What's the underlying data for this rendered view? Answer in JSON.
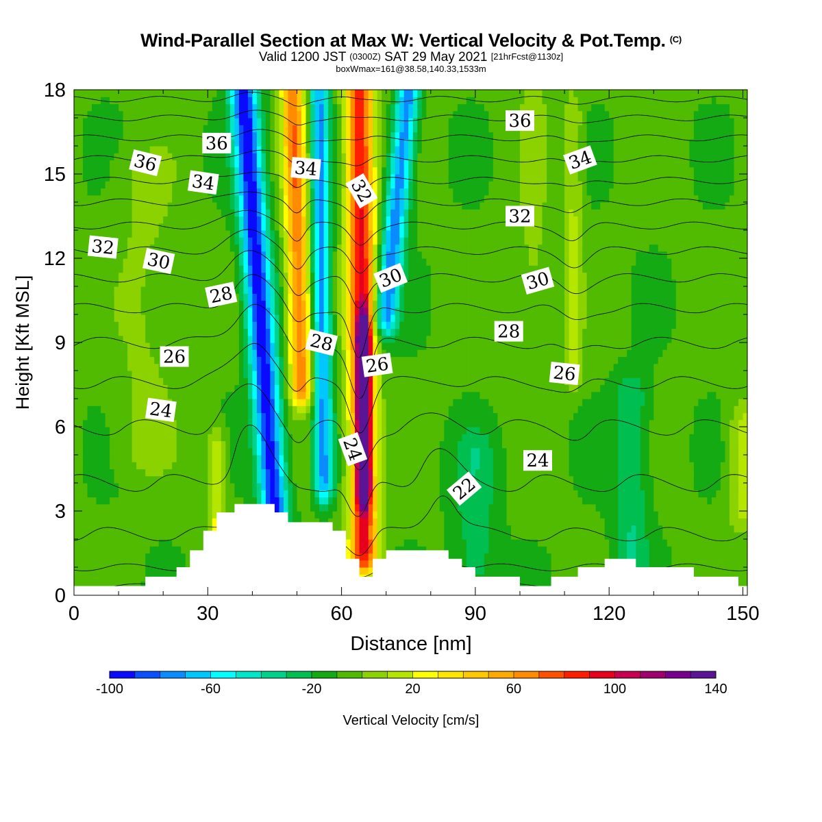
{
  "header": {
    "title": "Wind-Parallel Section at Max W: Vertical Velocity & Pot.Temp.",
    "copyright": "(C)",
    "subtitle_a": "Valid 1200 JST",
    "subtitle_b": "(0300Z)",
    "subtitle_c": "SAT 29 May 2021",
    "subtitle_d": "[21hrFcst@1130z]",
    "boxline": "boxWmax=161@38.58,140.33,1533m"
  },
  "colors": {
    "terrain": "#ffffff",
    "contour": "#000000",
    "palette": [
      "#0a0aff",
      "#0a50ff",
      "#0a8cff",
      "#00c8ff",
      "#00ffff",
      "#00e6c8",
      "#00d28c",
      "#00be50",
      "#14aa14",
      "#50bb00",
      "#8cd200",
      "#b4e600",
      "#ffff00",
      "#ffe600",
      "#ffc800",
      "#ffaa00",
      "#ff8c00",
      "#ff5000",
      "#ff1e00",
      "#e6001e",
      "#c80050",
      "#a0006e",
      "#78008c",
      "#5a1496"
    ]
  },
  "chart_data": {
    "type": "heatmap",
    "xlabel": "Distance [nm]",
    "ylabel": "Height [Kft MSL]",
    "xlim": [
      0,
      151
    ],
    "ylim": [
      0,
      18
    ],
    "xticks": [
      0,
      30,
      60,
      90,
      120,
      150
    ],
    "yticks": [
      0,
      3,
      6,
      9,
      12,
      15,
      18
    ],
    "colorbar": {
      "label": "Vertical Velocity [cm/s]",
      "min": -100,
      "max": 150,
      "step": 10,
      "ticks": [
        -100,
        -60,
        -20,
        20,
        60,
        100,
        140
      ]
    },
    "ambient_w": -8,
    "w_features": [
      {
        "x0": 38,
        "x1": 45,
        "ytop": 18,
        "ybot": 3,
        "w": -90,
        "width": 3
      },
      {
        "x0": 49,
        "x1": 51,
        "ytop": 18,
        "ybot": 7.5,
        "w": 75,
        "width": 2.5
      },
      {
        "x0": 55,
        "x1": 56,
        "ytop": 18,
        "ybot": 4,
        "w": -65,
        "width": 2
      },
      {
        "x0": 64,
        "x1": 65,
        "ytop": 18,
        "ybot": 1.5,
        "w": 100,
        "width": 3
      },
      {
        "x0": 65,
        "x1": 65,
        "ytop": 9,
        "ybot": 4,
        "w": 140,
        "width": 1.3
      },
      {
        "x0": 75,
        "x1": 70,
        "ytop": 18,
        "ybot": 10,
        "w": -70,
        "width": 2.5
      },
      {
        "x0": 112,
        "x1": 112,
        "ytop": 17,
        "ybot": 8,
        "w": 20,
        "width": 2
      },
      {
        "x0": 16,
        "x1": 16,
        "ytop": 15,
        "ybot": 5,
        "w": 10,
        "width": 7
      },
      {
        "x0": 32,
        "x1": 32,
        "ytop": 5,
        "ybot": 2,
        "w": 30,
        "width": 2
      },
      {
        "x0": 150,
        "x1": 150,
        "ytop": 6,
        "ybot": 3,
        "w": 22,
        "width": 3
      },
      {
        "x0": 125,
        "x1": 125,
        "ytop": 7,
        "ybot": 1,
        "w": -22,
        "width": 4
      },
      {
        "x0": 90,
        "x1": 90,
        "ytop": 5,
        "ybot": 1,
        "w": -18,
        "width": 5
      },
      {
        "x0": 103,
        "x1": 103,
        "ytop": 18,
        "ybot": 10,
        "w": 12,
        "width": 3
      }
    ],
    "terrain": [
      [
        0,
        0.33
      ],
      [
        16,
        0.33
      ],
      [
        16,
        0.66
      ],
      [
        23,
        0.66
      ],
      [
        23,
        1.0
      ],
      [
        26,
        1.0
      ],
      [
        26,
        1.6
      ],
      [
        29,
        1.6
      ],
      [
        29,
        2.3
      ],
      [
        32,
        2.3
      ],
      [
        32,
        2.95
      ],
      [
        36,
        2.95
      ],
      [
        36,
        3.25
      ],
      [
        45,
        3.25
      ],
      [
        45,
        2.95
      ],
      [
        48,
        2.95
      ],
      [
        48,
        2.6
      ],
      [
        58,
        2.6
      ],
      [
        58,
        2.3
      ],
      [
        61,
        2.3
      ],
      [
        61,
        1.3
      ],
      [
        64,
        1.3
      ],
      [
        64,
        0.66
      ],
      [
        67,
        0.66
      ],
      [
        67,
        1.3
      ],
      [
        70,
        1.3
      ],
      [
        70,
        1.6
      ],
      [
        84,
        1.6
      ],
      [
        84,
        1.3
      ],
      [
        87,
        1.3
      ],
      [
        87,
        1.0
      ],
      [
        90,
        1.0
      ],
      [
        90,
        0.66
      ],
      [
        100,
        0.66
      ],
      [
        100,
        0.33
      ],
      [
        107,
        0.33
      ],
      [
        107,
        0.66
      ],
      [
        113,
        0.66
      ],
      [
        113,
        1.0
      ],
      [
        119,
        1.0
      ],
      [
        119,
        1.3
      ],
      [
        126,
        1.3
      ],
      [
        126,
        1.0
      ],
      [
        139,
        1.0
      ],
      [
        139,
        0.66
      ],
      [
        149,
        0.66
      ],
      [
        149,
        0.33
      ],
      [
        151,
        0.33
      ]
    ],
    "theta_levels": {
      "min": 20,
      "max": 37,
      "step": 1
    },
    "theta_profile": [
      [
        0,
        19.4
      ],
      [
        0.66,
        20.6
      ],
      [
        1.33,
        21.4
      ],
      [
        2,
        21.9
      ],
      [
        3,
        22.5
      ],
      [
        4,
        23.0
      ],
      [
        5,
        23.5
      ],
      [
        6,
        24.0
      ],
      [
        7,
        24.6
      ],
      [
        8,
        25.3
      ],
      [
        9,
        26.0
      ],
      [
        10,
        26.8
      ],
      [
        11,
        27.7
      ],
      [
        12,
        28.7
      ],
      [
        13,
        29.8
      ],
      [
        14,
        31.0
      ],
      [
        15,
        32.3
      ],
      [
        16,
        33.6
      ],
      [
        17,
        35.0
      ],
      [
        18,
        36.5
      ]
    ],
    "theta_perturbations": [
      {
        "x": 40,
        "wx": 6,
        "y": 9,
        "wy": 7,
        "dtheta": -1.1
      },
      {
        "x": 50,
        "wx": 2.5,
        "y": 12,
        "wy": 6,
        "dtheta": 0.6
      },
      {
        "x": 64,
        "wx": 3,
        "y": 8,
        "wy": 6,
        "dtheta": 1.3
      },
      {
        "x": 82,
        "wx": 5,
        "y": 3,
        "wy": 3,
        "dtheta": -0.8
      },
      {
        "x": 112,
        "wx": 4,
        "y": 12,
        "wy": 5,
        "dtheta": 0.5
      }
    ],
    "theta_labels": [
      {
        "text": "36",
        "x": 16,
        "y": 15.4,
        "rot": -14
      },
      {
        "text": "36",
        "x": 32,
        "y": 16.1,
        "rot": 0
      },
      {
        "text": "34",
        "x": 29,
        "y": 14.7,
        "rot": -8
      },
      {
        "text": "34",
        "x": 52,
        "y": 15.2,
        "rot": -5
      },
      {
        "text": "32",
        "x": 6.5,
        "y": 12.4,
        "rot": -6
      },
      {
        "text": "30",
        "x": 19,
        "y": 11.9,
        "rot": -12
      },
      {
        "text": "28",
        "x": 33,
        "y": 10.7,
        "rot": 12
      },
      {
        "text": "32",
        "x": 64.5,
        "y": 14.4,
        "rot": -60
      },
      {
        "text": "30",
        "x": 71,
        "y": 11.3,
        "rot": 22
      },
      {
        "text": "28",
        "x": 55.5,
        "y": 9.0,
        "rot": -14
      },
      {
        "text": "26",
        "x": 68,
        "y": 8.2,
        "rot": 8
      },
      {
        "text": "26",
        "x": 22.5,
        "y": 8.5,
        "rot": 0
      },
      {
        "text": "24",
        "x": 19.5,
        "y": 6.6,
        "rot": -8
      },
      {
        "text": "24",
        "x": 62.5,
        "y": 5.2,
        "rot": -70
      },
      {
        "text": "22",
        "x": 87.5,
        "y": 3.8,
        "rot": 40
      },
      {
        "text": "36",
        "x": 100,
        "y": 16.9,
        "rot": 0
      },
      {
        "text": "34",
        "x": 113.5,
        "y": 15.5,
        "rot": 20
      },
      {
        "text": "32",
        "x": 100,
        "y": 13.5,
        "rot": 0
      },
      {
        "text": "30",
        "x": 104,
        "y": 11.2,
        "rot": 16
      },
      {
        "text": "28",
        "x": 97.5,
        "y": 9.4,
        "rot": 0
      },
      {
        "text": "26",
        "x": 110,
        "y": 7.9,
        "rot": -6
      },
      {
        "text": "24",
        "x": 104,
        "y": 4.8,
        "rot": 0
      }
    ]
  }
}
